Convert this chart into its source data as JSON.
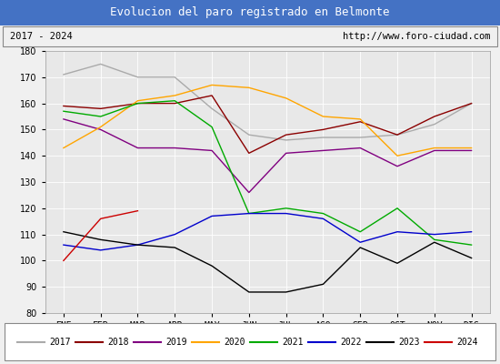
{
  "title": "Evolucion del paro registrado en Belmonte",
  "subtitle_left": "2017 - 2024",
  "subtitle_right": "http://www.foro-ciudad.com",
  "xlabel_months": [
    "ENE",
    "FEB",
    "MAR",
    "ABR",
    "MAY",
    "JUN",
    "JUL",
    "AGO",
    "SEP",
    "OCT",
    "NOV",
    "DIC"
  ],
  "ylim": [
    80,
    180
  ],
  "yticks": [
    80,
    90,
    100,
    110,
    120,
    130,
    140,
    150,
    160,
    170,
    180
  ],
  "series": {
    "2017": {
      "color": "#aaaaaa",
      "values": [
        171,
        175,
        170,
        170,
        158,
        148,
        146,
        147,
        147,
        148,
        152,
        160
      ]
    },
    "2018": {
      "color": "#8b0000",
      "values": [
        159,
        158,
        160,
        160,
        163,
        141,
        148,
        150,
        153,
        148,
        155,
        160
      ]
    },
    "2019": {
      "color": "#800080",
      "values": [
        154,
        150,
        143,
        143,
        142,
        126,
        141,
        142,
        143,
        136,
        142,
        142
      ]
    },
    "2020": {
      "color": "#ffa500",
      "values": [
        143,
        151,
        161,
        163,
        167,
        166,
        162,
        155,
        154,
        140,
        143,
        143
      ]
    },
    "2021": {
      "color": "#00aa00",
      "values": [
        157,
        155,
        160,
        161,
        151,
        118,
        120,
        118,
        111,
        120,
        108,
        106
      ]
    },
    "2022": {
      "color": "#0000cc",
      "values": [
        106,
        104,
        106,
        110,
        117,
        118,
        118,
        116,
        107,
        111,
        110,
        111
      ]
    },
    "2023": {
      "color": "#000000",
      "values": [
        111,
        108,
        106,
        105,
        98,
        88,
        88,
        91,
        105,
        99,
        107,
        101
      ]
    },
    "2024": {
      "color": "#cc0000",
      "values": [
        100,
        116,
        119,
        null,
        null,
        null,
        null,
        null,
        null,
        null,
        null,
        null
      ]
    }
  },
  "background_color": "#f0f0f0",
  "plot_bg_color": "#e8e8e8",
  "title_bg_color": "#4472c4",
  "title_color": "#ffffff",
  "grid_color": "#ffffff",
  "legend_box_color": "#ffffff"
}
